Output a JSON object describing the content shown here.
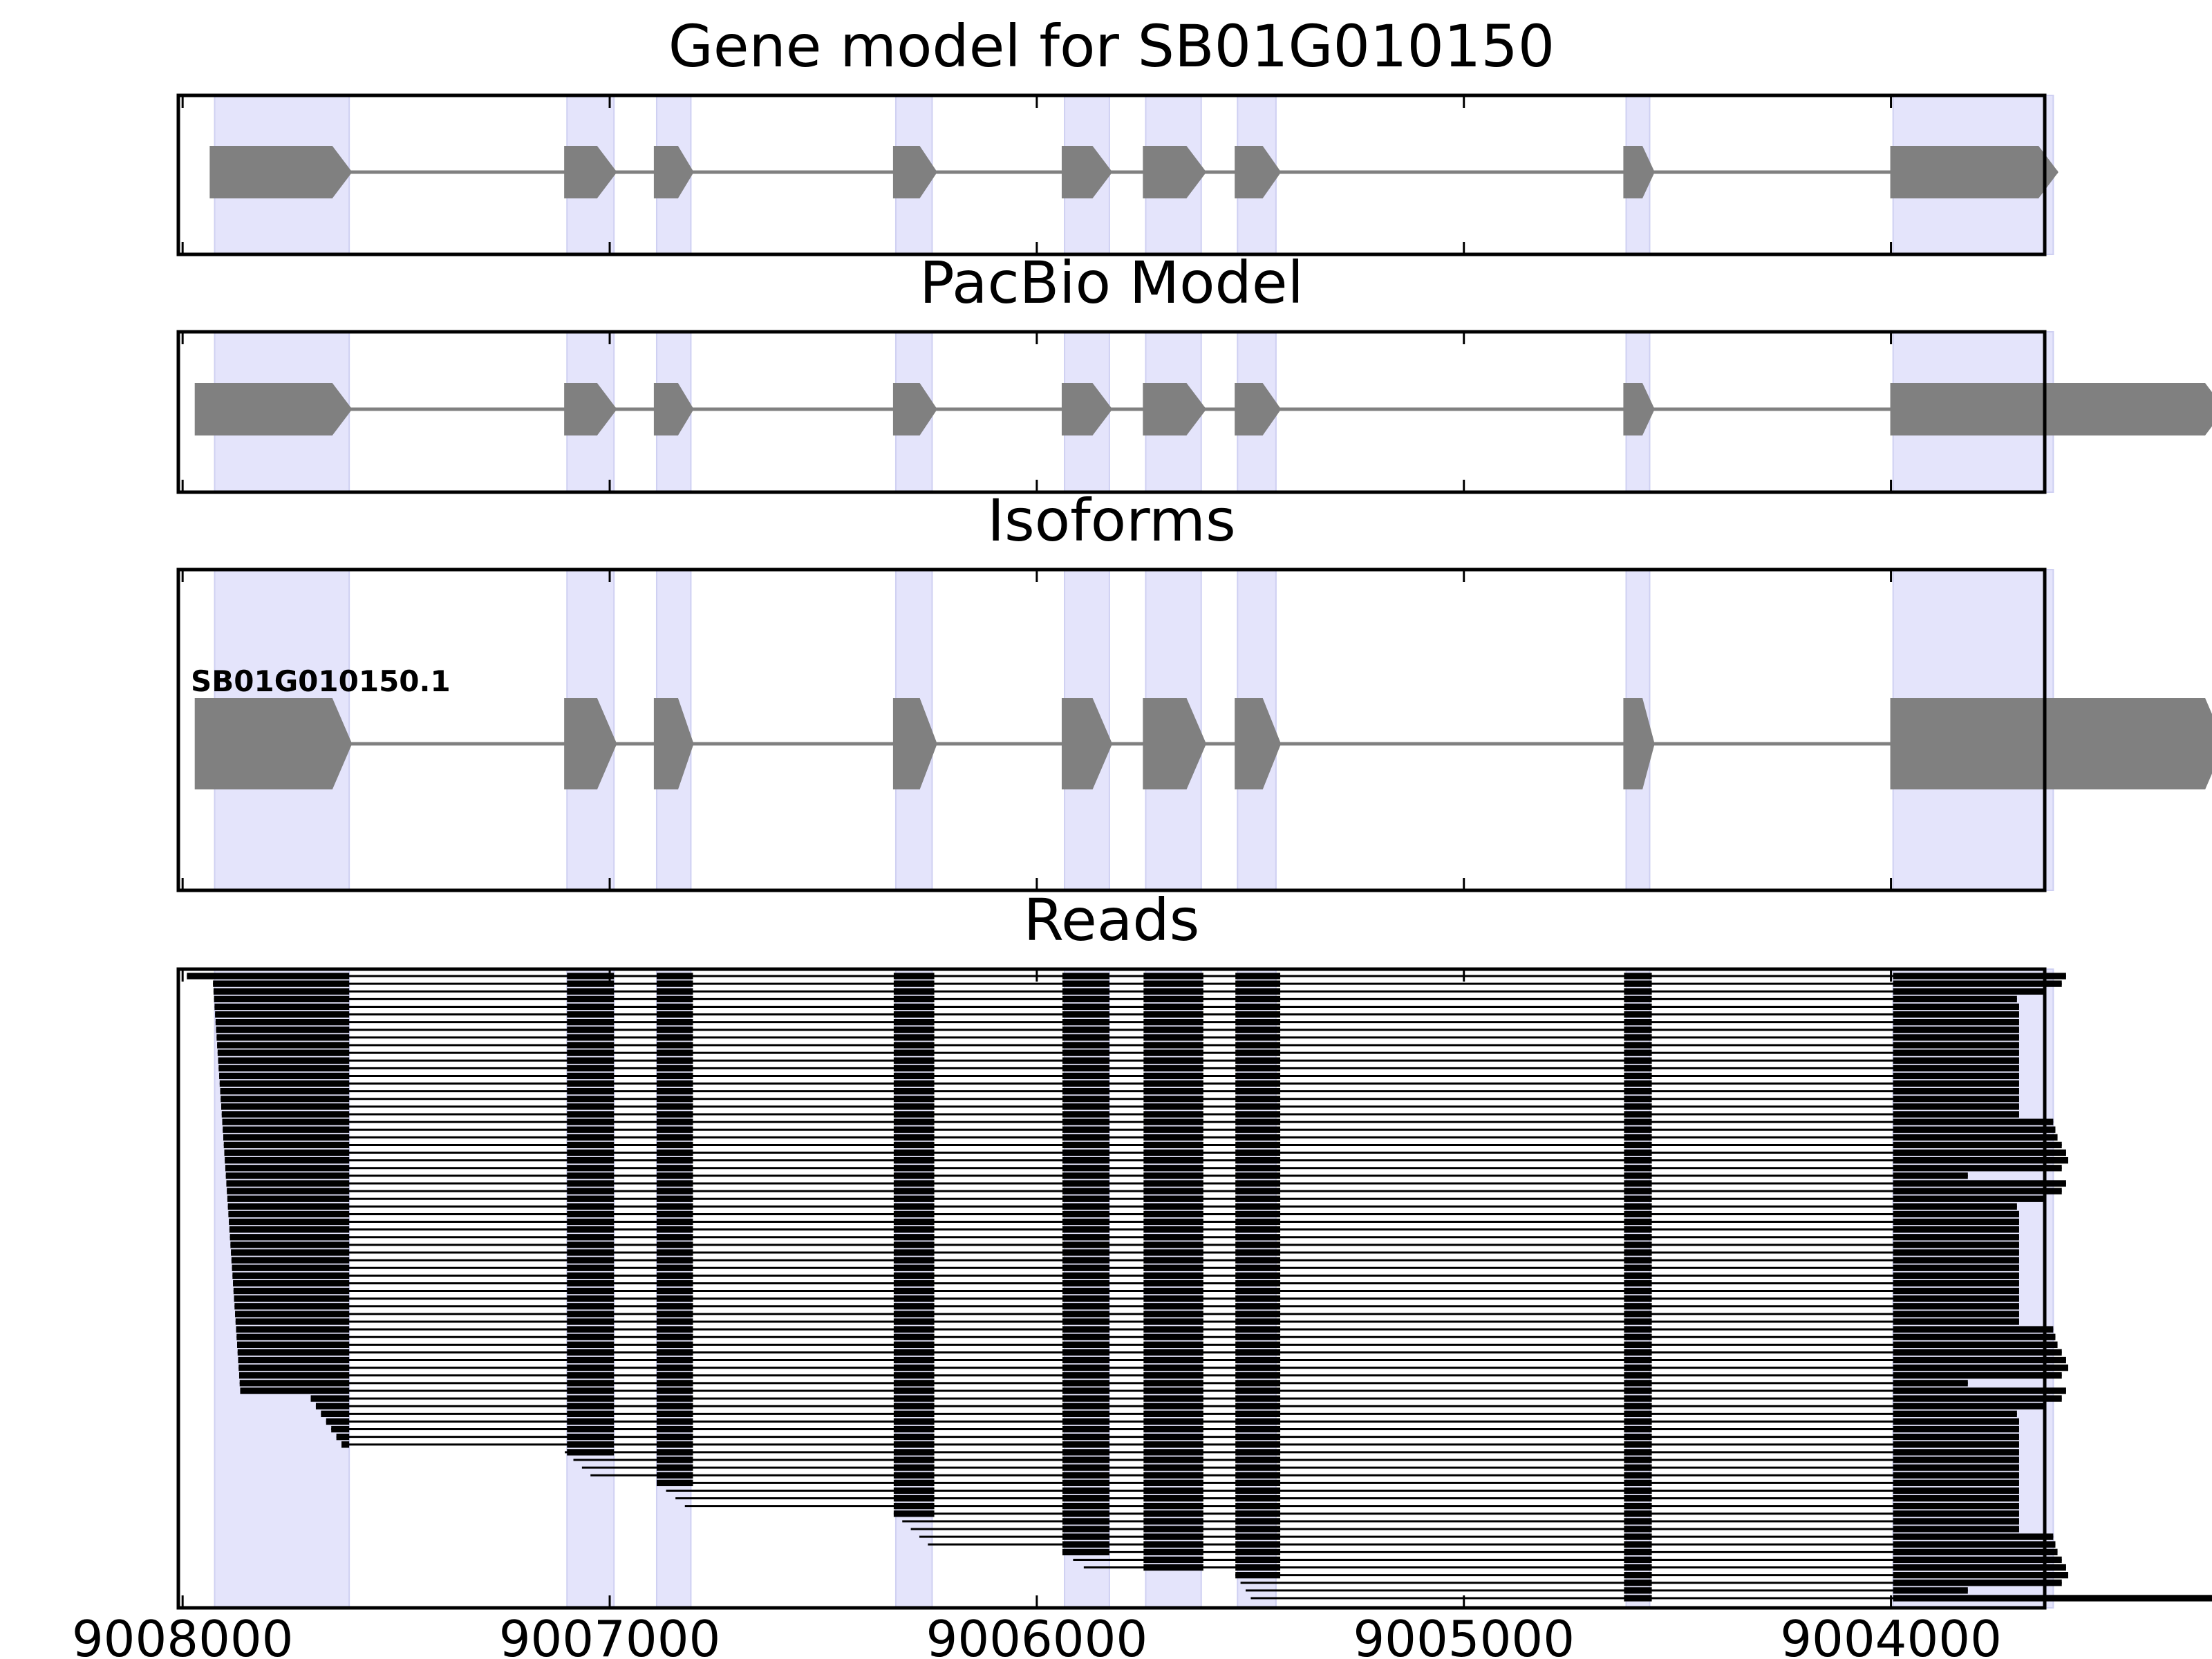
{
  "chart_data": {
    "type": "gene-track",
    "x_axis": {
      "reversed": true,
      "xlim": [
        9008010,
        9003640
      ],
      "ticks": [
        9008000,
        9007000,
        9006000,
        9005000,
        9004000
      ],
      "tick_labels": [
        "9008000",
        "9007000",
        "9006000",
        "9005000",
        "9004000"
      ]
    },
    "exon_shading": [
      [
        9007925,
        9007610
      ],
      [
        9007100,
        9006990
      ],
      [
        9006890,
        9006810
      ],
      [
        9006330,
        9006245
      ],
      [
        9005935,
        9005830
      ],
      [
        9005745,
        9005615
      ],
      [
        9005530,
        9005440
      ],
      [
        9004620,
        9004565
      ],
      [
        9003995,
        9003620
      ]
    ],
    "panels": [
      {
        "title": "Gene model for SB01G010150",
        "exons": [
          [
            9007935,
            9007605
          ],
          [
            9007105,
            9006985
          ],
          [
            9006895,
            9006805
          ],
          [
            9006335,
            9006235
          ],
          [
            9005940,
            9005825
          ],
          [
            9005750,
            9005605
          ],
          [
            9005535,
            9005430
          ],
          [
            9004625,
            9004555
          ],
          [
            9004000,
            9003610
          ]
        ]
      },
      {
        "title": "PacBio Model",
        "exons": [
          [
            9007970,
            9007605
          ],
          [
            9007105,
            9006985
          ],
          [
            9006895,
            9006805
          ],
          [
            9006335,
            9006235
          ],
          [
            9005940,
            9005825
          ],
          [
            9005750,
            9005605
          ],
          [
            9005535,
            9005430
          ],
          [
            9004625,
            9004555
          ],
          [
            9004000,
            9003220
          ]
        ]
      },
      {
        "title": "Isoforms",
        "isoform_label": "SB01G010150.1",
        "exons": [
          [
            9007970,
            9007605
          ],
          [
            9007105,
            9006985
          ],
          [
            9006895,
            9006805
          ],
          [
            9006335,
            9006235
          ],
          [
            9005940,
            9005825
          ],
          [
            9005750,
            9005605
          ],
          [
            9005535,
            9005430
          ],
          [
            9004625,
            9004555
          ],
          [
            9004000,
            9003220
          ]
        ]
      },
      {
        "title": "Reads",
        "read_count": 82,
        "exons": [
          [
            9007100,
            9006990
          ],
          [
            9006890,
            9006805
          ],
          [
            9006335,
            9006240
          ],
          [
            9005940,
            9005830
          ],
          [
            9005750,
            9005610
          ],
          [
            9005535,
            9005430
          ],
          [
            9004625,
            9004560
          ]
        ],
        "first_exon_end": 9007610,
        "last_exon_start": 9003995
      }
    ],
    "colors": {
      "exon": "#808080",
      "intron": "#808080",
      "shading": "#e4e4fb",
      "reads": "#000000",
      "frame": "#000000"
    }
  }
}
